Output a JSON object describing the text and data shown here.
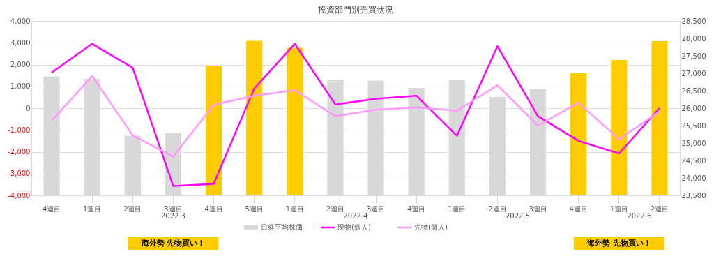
{
  "chart_data": {
    "type": "bar",
    "title": "投資部門別売買状況",
    "categories": [
      "4週目",
      "1週目",
      "2週目",
      "3週目",
      "4週目",
      "5週目",
      "1週目",
      "2週目",
      "3週目",
      "4週目",
      "1週目",
      "2週目",
      "3週目",
      "4週目",
      "1週目",
      "2週目"
    ],
    "series": [
      {
        "name": "日経平均株価",
        "axis": "y2",
        "color": "#d9d9d9",
        "colors": [
          "#d9d9d9",
          "#d9d9d9",
          "#d9d9d9",
          "#d9d9d9",
          "#ffcc00",
          "#ffcc00",
          "#ffcc00",
          "#d9d9d9",
          "#d9d9d9",
          "#d9d9d9",
          "#d9d9d9",
          "#d9d9d9",
          "#d9d9d9",
          "#ffcc00",
          "#ffcc00",
          "#ffcc00"
        ],
        "values": [
          26910,
          26840,
          25210,
          25290,
          27220,
          27930,
          27730,
          26820,
          26790,
          26580,
          26810,
          26320,
          26540,
          27000,
          27380,
          27920
        ]
      },
      {
        "name": "現物(個人)",
        "type": "line",
        "color": "#ff00ff",
        "values": [
          1630,
          2950,
          1850,
          -3570,
          -3470,
          900,
          2950,
          170,
          430,
          570,
          -1270,
          2840,
          -370,
          -1500,
          -2080,
          0
        ]
      },
      {
        "name": "先物(個人)",
        "type": "line",
        "color": "#ff99ff",
        "values": [
          -580,
          1470,
          -1250,
          -2220,
          150,
          570,
          820,
          -370,
          -70,
          30,
          -120,
          1050,
          -800,
          250,
          -1430,
          -150
        ]
      }
    ],
    "ylim": [
      -4000,
      4000
    ],
    "yticks": [
      {
        "value": -4000,
        "label": "-4,000"
      },
      {
        "value": -3000,
        "label": "-3,000"
      },
      {
        "value": -2000,
        "label": "-2,000"
      },
      {
        "value": -1000,
        "label": "-1,000"
      },
      0,
      {
        "value": 1000,
        "label": "1,000"
      },
      {
        "value": 2000,
        "label": "2,000"
      },
      {
        "value": 3000,
        "label": "3,000"
      },
      {
        "value": 4000,
        "label": "4,000"
      }
    ],
    "y2lim": [
      23500,
      28500
    ],
    "y2ticks": [
      {
        "value": 23500,
        "label": "23,500"
      },
      {
        "value": 24000,
        "label": "24,000"
      },
      {
        "value": 24500,
        "label": "24,500"
      },
      {
        "value": 25000,
        "label": "25,000"
      },
      {
        "value": 25500,
        "label": "25,500"
      },
      {
        "value": 26000,
        "label": "26,000"
      },
      {
        "value": 26500,
        "label": "26,500"
      },
      {
        "value": 27000,
        "label": "27,000"
      },
      {
        "value": 27500,
        "label": "27,500"
      },
      {
        "value": 28000,
        "label": "28,000"
      },
      {
        "value": 28500,
        "label": "28,500"
      }
    ],
    "grid": "y",
    "legend": "bottom",
    "marker": "none",
    "line_style": "solid",
    "annotations": [
      "2022.3",
      "2022.4",
      "2022.5",
      "2022.6",
      "海外勢 先物買い！",
      "海外勢 先物買い！"
    ]
  }
}
